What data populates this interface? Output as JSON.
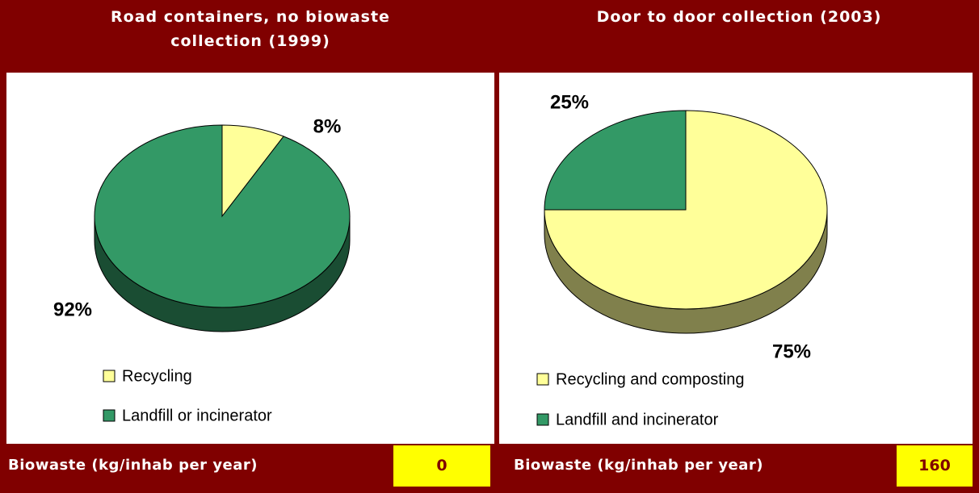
{
  "chart_data": [
    {
      "type": "pie",
      "title": "Road containers, no biowaste collection (1999)",
      "categories": [
        "Recycling",
        "Landfill or incinerator"
      ],
      "values": [
        8,
        92
      ],
      "value_labels": [
        "8%",
        "92%"
      ],
      "colors": [
        "#ffff99",
        "#339966"
      ],
      "side_colors": [
        "#80804c",
        "#1a4d33"
      ],
      "footer_label": "Biowaste (kg/inhab per year)",
      "footer_value": 0
    },
    {
      "type": "pie",
      "title": "Door to door collection (2003)",
      "categories": [
        "Recycling and composting",
        "Landfill and incinerator"
      ],
      "values": [
        75,
        25
      ],
      "value_labels": [
        "75%",
        "25%"
      ],
      "colors": [
        "#ffff99",
        "#339966"
      ],
      "side_colors": [
        "#80804c",
        "#1a4d33"
      ],
      "footer_label": "Biowaste (kg/inhab per year)",
      "footer_value": 160
    }
  ]
}
